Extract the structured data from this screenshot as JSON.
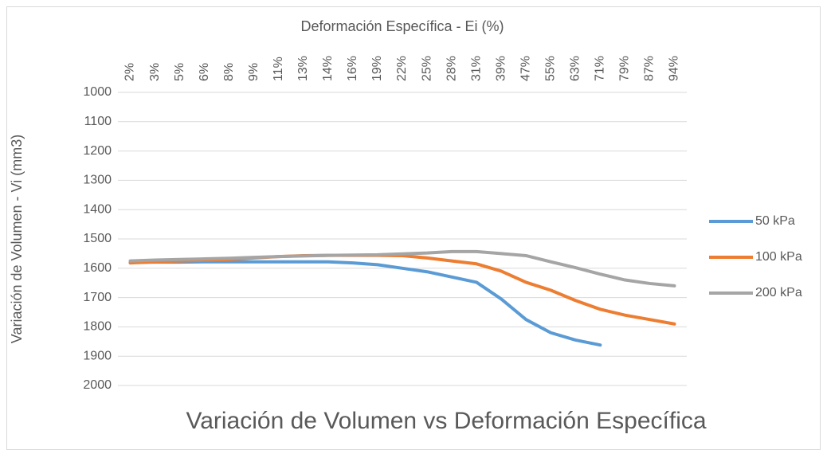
{
  "chart_data": {
    "type": "line",
    "title": "Variación de Volumen vs Deformación Específica",
    "x_axis_label": "Deformación Específica - Ei (%)",
    "y_axis_label": "Variación de Volumen - Vi  (mm3)",
    "categories": [
      "2%",
      "3%",
      "5%",
      "6%",
      "8%",
      "9%",
      "11%",
      "13%",
      "14%",
      "16%",
      "19%",
      "22%",
      "25%",
      "28%",
      "31%",
      "39%",
      "47%",
      "55%",
      "63%",
      "71%",
      "79%",
      "87%",
      "94%"
    ],
    "series": [
      {
        "name": "50 kPa",
        "color": "#5b9bd5",
        "values": [
          1580,
          1579,
          1579,
          1578,
          1578,
          1578,
          1578,
          1578,
          1578,
          1582,
          1588,
          1600,
          1612,
          1630,
          1648,
          1705,
          1775,
          1820,
          1845,
          1862,
          null,
          null,
          null
        ]
      },
      {
        "name": "100 kPa",
        "color": "#ed7d31",
        "values": [
          1582,
          1578,
          1575,
          1573,
          1570,
          1565,
          1560,
          1557,
          1556,
          1556,
          1556,
          1557,
          1565,
          1575,
          1585,
          1610,
          1648,
          1675,
          1710,
          1740,
          1760,
          1775,
          1790
        ]
      },
      {
        "name": "200 kPa",
        "color": "#a5a5a5",
        "values": [
          1575,
          1572,
          1570,
          1568,
          1566,
          1563,
          1560,
          1558,
          1556,
          1555,
          1554,
          1551,
          1548,
          1543,
          1543,
          1550,
          1557,
          1578,
          1598,
          1620,
          1640,
          1652,
          1660
        ]
      }
    ],
    "ylim": [
      1000,
      2000
    ],
    "y_inverted": true,
    "yticks": [
      1000,
      1100,
      1200,
      1300,
      1400,
      1500,
      1600,
      1700,
      1800,
      1900,
      2000
    ],
    "grid": true,
    "x_axis_position": "top",
    "legend": "right"
  }
}
